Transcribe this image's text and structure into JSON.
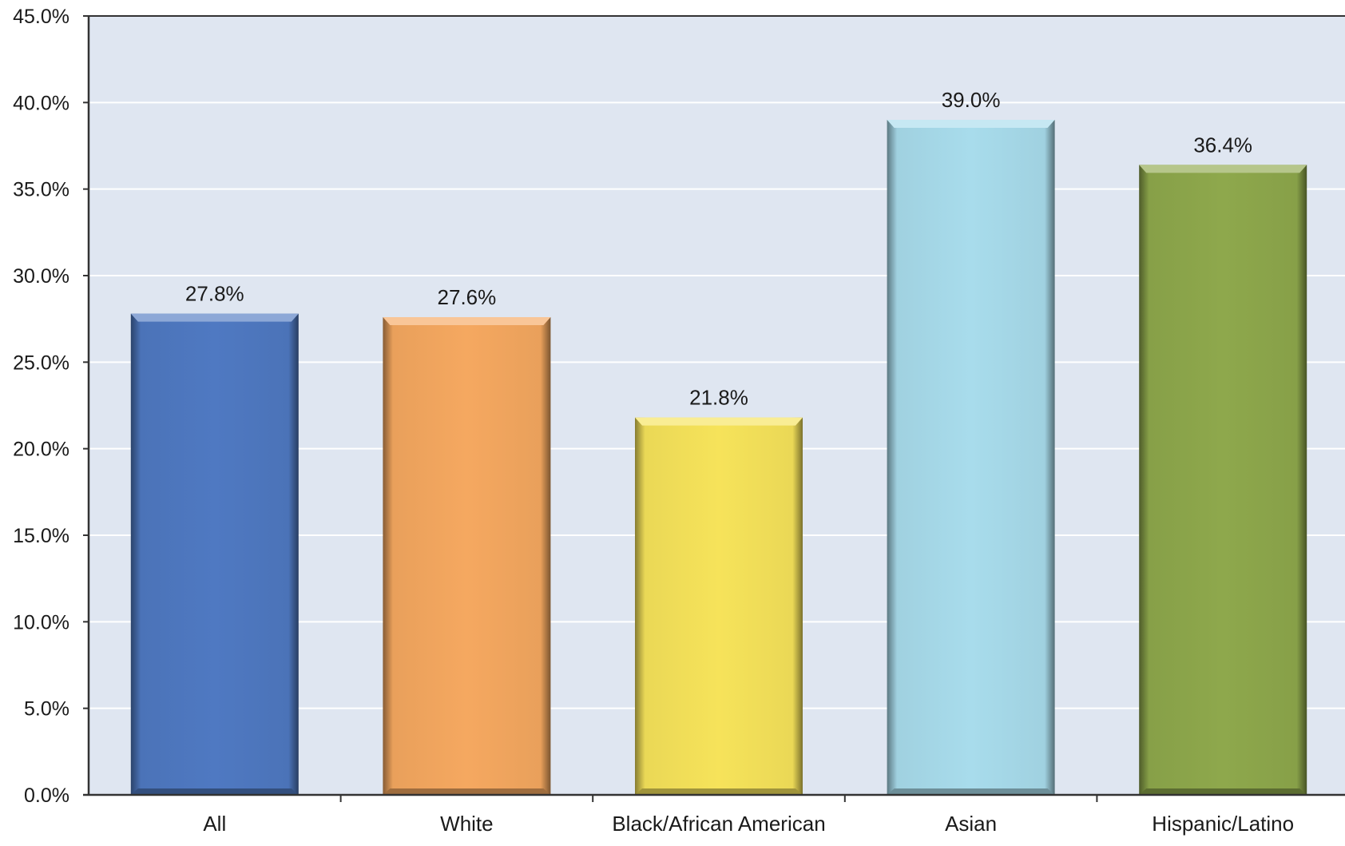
{
  "chart_data": {
    "type": "bar",
    "categories": [
      "All",
      "White",
      "Black/African American",
      "Asian",
      "Hispanic/Latino"
    ],
    "values": [
      27.8,
      27.6,
      21.8,
      39.0,
      36.4
    ],
    "data_labels": [
      "27.8%",
      "27.6%",
      "21.8%",
      "39.0%",
      "36.4%"
    ],
    "bar_colors": [
      "#4f79c2",
      "#f5a860",
      "#f6e35a",
      "#a8dcec",
      "#8ea84c"
    ],
    "ylim": [
      0,
      45
    ],
    "yticks": [
      0,
      5,
      10,
      15,
      20,
      25,
      30,
      35,
      40,
      45
    ],
    "ytick_labels": [
      "0.0%",
      "5.0%",
      "10.0%",
      "15.0%",
      "20.0%",
      "25.0%",
      "30.0%",
      "35.0%",
      "40.0%",
      "45.0%"
    ],
    "plot_background": "#dfe6f1",
    "grid": true,
    "grid_color": "#ffffff",
    "title": "",
    "xlabel": "",
    "ylabel": ""
  }
}
